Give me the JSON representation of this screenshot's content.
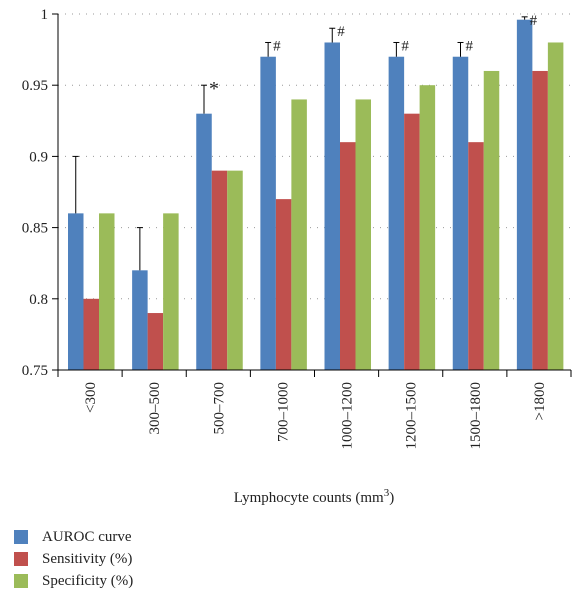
{
  "chart_data": {
    "type": "bar",
    "xlabel": "Lymphocyte counts (mm",
    "xlabel_sup": "3",
    "xlabel_end": ")",
    "categories": [
      "<300",
      "300–500",
      "500–700",
      "700–1000",
      "1000–1200",
      "1200–1500",
      "1500–1800",
      ">1800"
    ],
    "yticks": [
      "0.75",
      "0.8",
      "0.85",
      "0.9",
      "0.95",
      "1"
    ],
    "ylim": [
      0.75,
      1.0
    ],
    "grid": true,
    "legend_position": "bottom-left",
    "series": [
      {
        "name": "AUROC curve",
        "color": "#4f81bd",
        "values": [
          0.86,
          0.82,
          0.93,
          0.97,
          0.98,
          0.97,
          0.97,
          0.996
        ],
        "error_upper": [
          0.04,
          0.03,
          0.02,
          0.01,
          0.01,
          0.01,
          0.01,
          0.002
        ]
      },
      {
        "name": "Sensitivity (%)",
        "color": "#c0504d",
        "values": [
          0.8,
          0.79,
          0.89,
          0.87,
          0.91,
          0.93,
          0.91,
          0.96
        ]
      },
      {
        "name": "Specificity (%)",
        "color": "#9bbb59",
        "values": [
          0.86,
          0.86,
          0.89,
          0.94,
          0.94,
          0.95,
          0.96,
          0.98
        ]
      }
    ],
    "annotations": [
      "",
      "",
      "*",
      "#",
      "#",
      "#",
      "#",
      "#"
    ]
  }
}
